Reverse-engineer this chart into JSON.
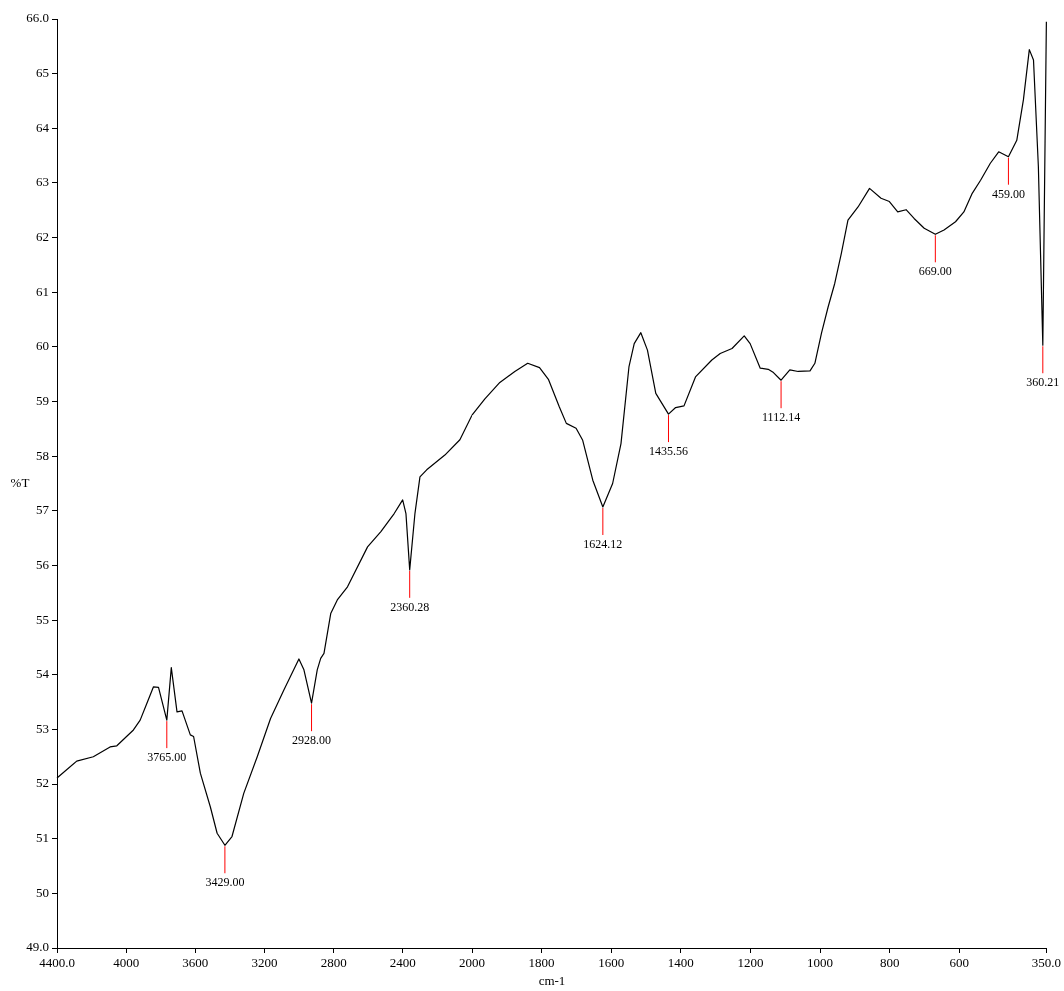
{
  "chart_data": [
    {
      "type": "line",
      "xlabel": "cm-1",
      "ylabel": "%T",
      "color": "#000000",
      "xlim": [
        4400,
        2000
      ],
      "xticks": [
        {
          "value": 4400,
          "label": "4400.0"
        },
        4000,
        3600,
        3200,
        2800,
        2400
      ],
      "ylim": [
        49,
        66
      ],
      "yticks": [
        {
          "value": 49,
          "label": "49.0"
        },
        50,
        51,
        52,
        53,
        54,
        55,
        56,
        57,
        58,
        59,
        60,
        61,
        62,
        63,
        64,
        65,
        {
          "value": 66,
          "label": "66.0"
        }
      ],
      "x": [
        4400,
        4286,
        4190,
        4093,
        4054,
        3958,
        3919,
        3880,
        3842,
        3813,
        3765,
        3739,
        3706,
        3677,
        3629,
        3610,
        3571,
        3513,
        3474,
        3429,
        3388,
        3320,
        3242,
        3165,
        3088,
        3001,
        2972,
        2928,
        2895,
        2875,
        2856,
        2817,
        2779,
        2720,
        2604,
        2527,
        2450,
        2401,
        2382,
        2360.28,
        2330,
        2301,
        2262,
        2157,
        2070,
        2000
      ],
      "values": [
        52.11,
        52.42,
        52.5,
        52.68,
        52.7,
        52.99,
        53.17,
        53.48,
        53.78,
        53.77,
        53.17,
        54.13,
        53.32,
        53.34,
        52.9,
        52.87,
        52.2,
        51.58,
        51.1,
        50.88,
        51.04,
        51.83,
        52.5,
        53.2,
        53.72,
        54.29,
        54.09,
        53.48,
        54.09,
        54.3,
        54.39,
        55.12,
        55.37,
        55.61,
        56.34,
        56.62,
        56.95,
        57.2,
        56.95,
        55.92,
        56.95,
        57.62,
        57.75,
        58.02,
        58.3,
        58.75
      ],
      "annotations": [
        {
          "text": "3765.00",
          "x": 3765,
          "y": 53.17
        },
        {
          "text": "3429.00",
          "x": 3429,
          "y": 50.88
        },
        {
          "text": "2928.00",
          "x": 2928,
          "y": 53.48
        },
        {
          "text": "2360.28",
          "x": 2360.28,
          "y": 55.92
        }
      ]
    },
    {
      "type": "line",
      "color": "#000000",
      "tick_labels": "x",
      "xlim": [
        2000,
        350
      ],
      "xticks": [
        2000,
        1800,
        1600,
        1400,
        1200,
        1000,
        800,
        600,
        {
          "value": 350,
          "label": "350.0"
        }
      ],
      "ylim": [
        49,
        66
      ],
      "x": [
        2000,
        1963,
        1920,
        1877,
        1840,
        1806,
        1780,
        1749,
        1729,
        1701,
        1682,
        1653,
        1624.12,
        1596,
        1572,
        1549,
        1534,
        1515,
        1496,
        1472,
        1435.56,
        1415,
        1391,
        1358,
        1311,
        1287,
        1253,
        1218,
        1201,
        1172,
        1149,
        1134,
        1112.14,
        1087,
        1063,
        1029,
        1015,
        996,
        977,
        958,
        939,
        920,
        891,
        858,
        825,
        801,
        777,
        753,
        730,
        701,
        669,
        644,
        611,
        587,
        563,
        539,
        511,
        487,
        459,
        435,
        416,
        399,
        387,
        373,
        360.21,
        350
      ],
      "values": [
        58.75,
        59.05,
        59.35,
        59.55,
        59.7,
        59.62,
        59.4,
        58.9,
        58.6,
        58.51,
        58.29,
        57.56,
        57.07,
        57.5,
        58.23,
        59.64,
        60.06,
        60.26,
        59.94,
        59.15,
        58.77,
        58.89,
        58.92,
        59.45,
        59.76,
        59.88,
        59.97,
        60.2,
        60.06,
        59.61,
        59.59,
        59.53,
        59.39,
        59.58,
        59.55,
        59.56,
        59.7,
        60.25,
        60.73,
        61.16,
        61.71,
        62.32,
        62.56,
        62.9,
        62.72,
        62.66,
        62.47,
        62.51,
        62.35,
        62.17,
        62.06,
        62.14,
        62.29,
        62.47,
        62.81,
        63.05,
        63.36,
        63.57,
        63.48,
        63.78,
        64.52,
        65.44,
        65.25,
        63.3,
        60.03,
        65.95
      ],
      "annotations": [
        {
          "text": "1624.12",
          "x": 1624.12,
          "y": 57.07
        },
        {
          "text": "1435.56",
          "x": 1435.56,
          "y": 58.77
        },
        {
          "text": "1112.14",
          "x": 1112.14,
          "y": 59.39
        },
        {
          "text": "669.00",
          "x": 669,
          "y": 62.06
        },
        {
          "text": "459.00",
          "x": 459,
          "y": 63.48
        },
        {
          "text": "360.21",
          "x": 360.21,
          "y": 60.03
        }
      ]
    }
  ]
}
